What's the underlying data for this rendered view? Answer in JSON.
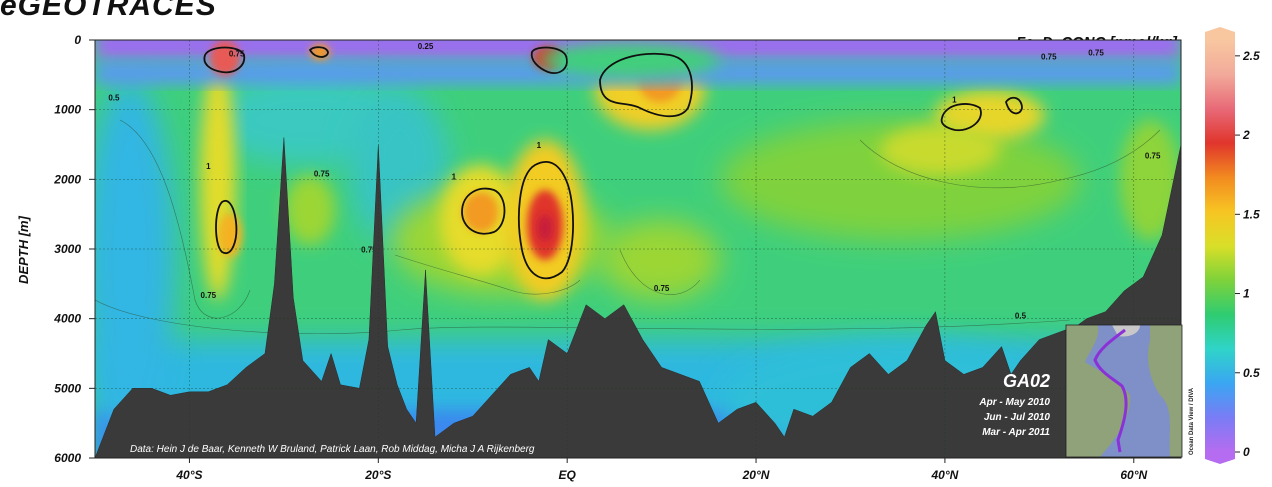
{
  "header": {
    "app_title": "eGEOTRACES",
    "variable_label": "Fe_D_CONC [nmol/kg]"
  },
  "chart_data": {
    "type": "heatmap",
    "title": "Fe_D_CONC [nmol/kg]",
    "ylabel": "DEPTH [m]",
    "xlabel": "",
    "x_ticks": [
      {
        "lat": -40,
        "label": "40°S"
      },
      {
        "lat": -20,
        "label": "20°S"
      },
      {
        "lat": 0,
        "label": "EQ"
      },
      {
        "lat": 20,
        "label": "20°N"
      },
      {
        "lat": 40,
        "label": "40°N"
      },
      {
        "lat": 60,
        "label": "60°N"
      }
    ],
    "y_ticks": [
      0,
      1000,
      2000,
      3000,
      4000,
      5000,
      6000
    ],
    "xlim": [
      -50,
      65
    ],
    "ylim": [
      0,
      6000
    ],
    "y_inverted": true,
    "colorbar": {
      "ticks": [
        0,
        0.5,
        1,
        1.5,
        2,
        2.5
      ],
      "range": [
        0,
        2.6
      ],
      "colors": [
        "#b66cf0",
        "#7a7cf5",
        "#3aa6f2",
        "#2fd4c8",
        "#2fcc72",
        "#7ed23a",
        "#d9df28",
        "#f7c523",
        "#f28a20",
        "#e0352c",
        "#e86a78",
        "#f2aa9a",
        "#f8c7a0"
      ]
    },
    "contour_labels": [
      {
        "lat": -38,
        "depth": 1850,
        "text": "1"
      },
      {
        "lat": -38,
        "depth": 3700,
        "text": "0.75"
      },
      {
        "lat": -26,
        "depth": 1960,
        "text": "0.75"
      },
      {
        "lat": -12,
        "depth": 2000,
        "text": "1"
      },
      {
        "lat": -3,
        "depth": 1550,
        "text": "1"
      },
      {
        "lat": 10,
        "depth": 3600,
        "text": "0.75"
      },
      {
        "lat": 41,
        "depth": 900,
        "text": "1"
      },
      {
        "lat": 62,
        "depth": 1700,
        "text": "0.75"
      },
      {
        "lat": -21,
        "depth": 3050,
        "text": "0.75"
      },
      {
        "lat": 51,
        "depth": 280,
        "text": "0.75"
      },
      {
        "lat": 56,
        "depth": 220,
        "text": "0.75"
      },
      {
        "lat": -48,
        "depth": 870,
        "text": "0.5"
      },
      {
        "lat": -15,
        "depth": 130,
        "text": "0.25"
      },
      {
        "lat": -35,
        "depth": 240,
        "text": "0.75"
      },
      {
        "lat": 48,
        "depth": 4000,
        "text": "0.5"
      }
    ],
    "features": [
      {
        "lat": -37,
        "depth_top": 100,
        "depth_bottom": 3800,
        "value": 1.1
      },
      {
        "lat": -37,
        "depth": 2600,
        "value": 1.25
      },
      {
        "lat": -37,
        "depth": 250,
        "value": 2.0
      },
      {
        "lat": -11,
        "depth": 2400,
        "value": 1.35
      },
      {
        "lat": -2,
        "depth": 2600,
        "value": 1.9
      },
      {
        "lat": -3,
        "depth": 250,
        "value": 1.7
      },
      {
        "lat": 10,
        "depth": 600,
        "value": 1.35
      },
      {
        "lat": 41,
        "depth": 1100,
        "value": 1.1
      }
    ],
    "seafloor": [
      [
        -50,
        6000
      ],
      [
        -48,
        5300
      ],
      [
        -46,
        5000
      ],
      [
        -44,
        5000
      ],
      [
        -42,
        5100
      ],
      [
        -40,
        5050
      ],
      [
        -38,
        5050
      ],
      [
        -36,
        4950
      ],
      [
        -34,
        4700
      ],
      [
        -32,
        4500
      ],
      [
        -31,
        3500
      ],
      [
        -30,
        1400
      ],
      [
        -29,
        3700
      ],
      [
        -28,
        4600
      ],
      [
        -26,
        4900
      ],
      [
        -25,
        4500
      ],
      [
        -24,
        4950
      ],
      [
        -22,
        5000
      ],
      [
        -21,
        4300
      ],
      [
        -20,
        1500
      ],
      [
        -19,
        4400
      ],
      [
        -18,
        4950
      ],
      [
        -17,
        5300
      ],
      [
        -16,
        5500
      ],
      [
        -15,
        3300
      ],
      [
        -14,
        5700
      ],
      [
        -12,
        5500
      ],
      [
        -10,
        5400
      ],
      [
        -8,
        5100
      ],
      [
        -6,
        4800
      ],
      [
        -4,
        4700
      ],
      [
        -3,
        4900
      ],
      [
        -2,
        4300
      ],
      [
        0,
        4500
      ],
      [
        2,
        3800
      ],
      [
        4,
        4000
      ],
      [
        6,
        3800
      ],
      [
        8,
        4300
      ],
      [
        10,
        4700
      ],
      [
        12,
        4800
      ],
      [
        14,
        4900
      ],
      [
        16,
        5500
      ],
      [
        18,
        5300
      ],
      [
        20,
        5200
      ],
      [
        22,
        5500
      ],
      [
        23,
        5700
      ],
      [
        24,
        5300
      ],
      [
        26,
        5400
      ],
      [
        28,
        5200
      ],
      [
        30,
        4700
      ],
      [
        32,
        4500
      ],
      [
        34,
        4800
      ],
      [
        36,
        4600
      ],
      [
        38,
        4100
      ],
      [
        39,
        3900
      ],
      [
        40,
        4600
      ],
      [
        42,
        4800
      ],
      [
        44,
        4700
      ],
      [
        46,
        4400
      ],
      [
        47,
        4800
      ],
      [
        48,
        4600
      ],
      [
        50,
        4300
      ],
      [
        52,
        4200
      ],
      [
        54,
        4100
      ],
      [
        55,
        4000
      ],
      [
        57,
        3900
      ],
      [
        59,
        3600
      ],
      [
        61,
        3400
      ],
      [
        63,
        2800
      ],
      [
        65,
        1500
      ]
    ]
  },
  "annotations": {
    "data_credit": "Data: Hein J de Baar, Kenneth W Bruland, Patrick Laan, Rob Middag, Micha J A Rijkenberg",
    "cruise": {
      "name": "GA02",
      "dates": [
        "Apr - May 2010",
        "Jun - Jul 2010",
        "Mar - Apr 2011"
      ]
    },
    "software_credit": "Ocean Data View / DIVA"
  }
}
